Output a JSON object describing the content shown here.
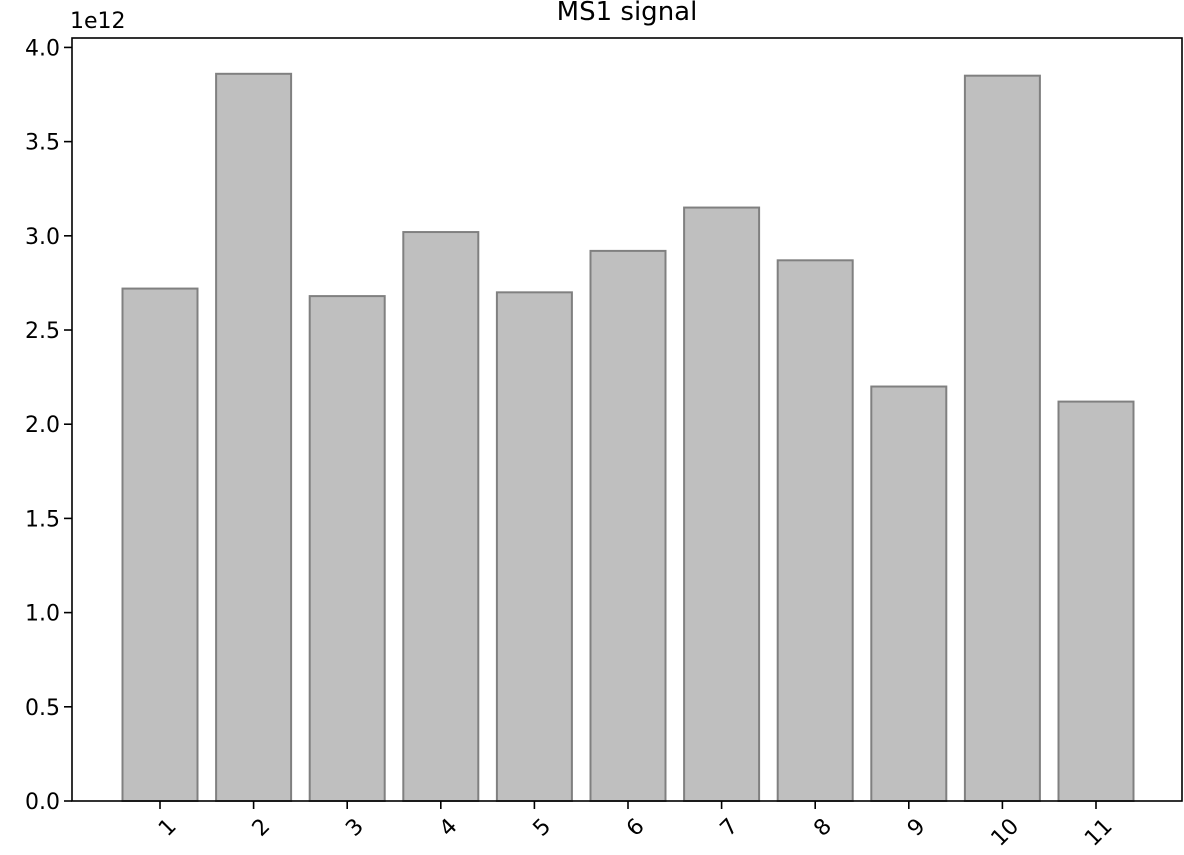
{
  "chart_data": {
    "type": "bar",
    "title": "MS1 signal",
    "xlabel": "",
    "ylabel": "",
    "offset_label": "1e12",
    "categories": [
      "1",
      "2",
      "3",
      "4",
      "5",
      "6",
      "7",
      "8",
      "9",
      "10",
      "11"
    ],
    "values": [
      2720000000000.0,
      3860000000000.0,
      2680000000000.0,
      3020000000000.0,
      2700000000000.0,
      2920000000000.0,
      3150000000000.0,
      2870000000000.0,
      2200000000000.0,
      3850000000000.0,
      2120000000000.0
    ],
    "ylim": [
      0,
      4050000000000.0
    ],
    "yticks": [
      {
        "value": 0.0,
        "label": "0.0"
      },
      {
        "value": 500000000000.0,
        "label": "0.5"
      },
      {
        "value": 1000000000000.0,
        "label": "1.0"
      },
      {
        "value": 1500000000000.0,
        "label": "1.5"
      },
      {
        "value": 2000000000000.0,
        "label": "2.0"
      },
      {
        "value": 2500000000000.0,
        "label": "2.5"
      },
      {
        "value": 3000000000000.0,
        "label": "3.0"
      },
      {
        "value": 3500000000000.0,
        "label": "3.5"
      },
      {
        "value": 4000000000000.0,
        "label": "4.0"
      }
    ],
    "bar_color": "#bfbfbf",
    "bar_edge_color": "#808080",
    "grid": false,
    "legend": "none"
  }
}
